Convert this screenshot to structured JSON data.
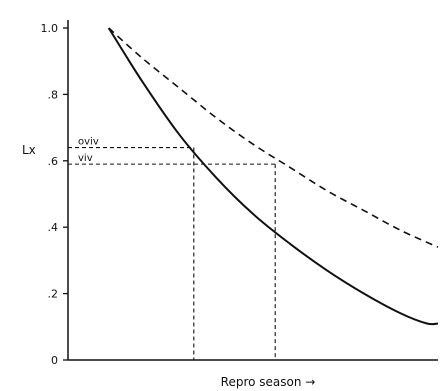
{
  "chart_data": {
    "type": "line",
    "title": "",
    "xlabel": "Repro season →",
    "ylabel": "Lx",
    "ylim": [
      0,
      1.0
    ],
    "xlim": [
      0,
      1
    ],
    "yticks": [
      0,
      0.2,
      0.4,
      0.6,
      0.8,
      1.0
    ],
    "ytick_labels": [
      "0",
      ".2",
      ".4",
      ".6",
      ".8",
      "1.0"
    ],
    "grid": false,
    "series": [
      {
        "line_style": "solid",
        "x": [
          0.11,
          0.2,
          0.3,
          0.4,
          0.5,
          0.6,
          0.7,
          0.8,
          0.9,
          0.97,
          1.0
        ],
        "y": [
          1.0,
          0.84,
          0.68,
          0.55,
          0.44,
          0.35,
          0.27,
          0.2,
          0.14,
          0.11,
          0.11
        ]
      },
      {
        "line_style": "dashed",
        "x": [
          0.11,
          0.2,
          0.3,
          0.4,
          0.5,
          0.6,
          0.7,
          0.8,
          0.9,
          1.0
        ],
        "y": [
          1.0,
          0.91,
          0.82,
          0.73,
          0.65,
          0.58,
          0.51,
          0.45,
          0.39,
          0.34
        ]
      }
    ],
    "annotations": [
      {
        "label": "oviv",
        "y": 0.64,
        "x_end": 0.34
      },
      {
        "label": "viv",
        "y": 0.59,
        "x_end": 0.56
      }
    ]
  }
}
